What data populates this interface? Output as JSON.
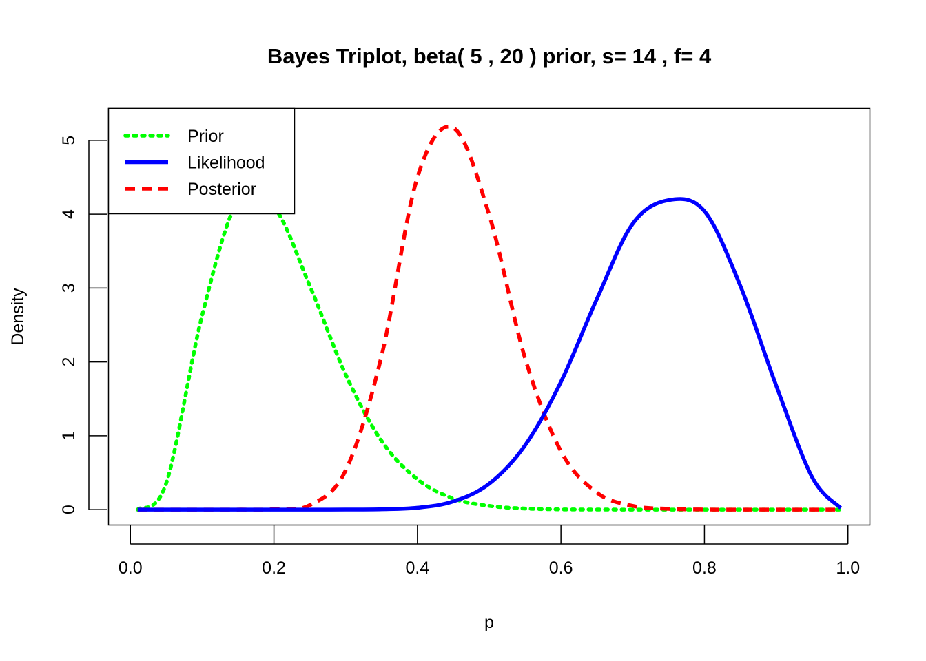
{
  "chart_data": {
    "type": "line",
    "title": "Bayes Triplot, beta( 5 , 20 ) prior, s= 14 , f= 4",
    "xlabel": "p",
    "ylabel": "Density",
    "xlim": [
      -0.0305,
      1.0305
    ],
    "ylim": [
      -0.209,
      5.432
    ],
    "xticks": [
      0,
      0.2,
      0.4,
      0.6,
      0.8,
      1
    ],
    "xtick_labels": [
      "0.0",
      "0.2",
      "0.4",
      "0.6",
      "0.8",
      "1.0"
    ],
    "yticks": [
      0,
      1,
      2,
      3,
      4,
      5
    ],
    "ytick_labels": [
      "0",
      "1",
      "2",
      "3",
      "4",
      "5"
    ],
    "grid": false,
    "legend": {
      "position": "top-left",
      "entries": [
        {
          "label": "Prior",
          "color": "#00ff00",
          "style": "dotted"
        },
        {
          "label": "Likelihood",
          "color": "#0000ff",
          "style": "solid"
        },
        {
          "label": "Posterior",
          "color": "#ff0000",
          "style": "dashed"
        }
      ]
    },
    "x": [
      0.01,
      0.05,
      0.1,
      0.15,
      0.2,
      0.25,
      0.3,
      0.35,
      0.4,
      0.45,
      0.5,
      0.55,
      0.6,
      0.65,
      0.7,
      0.75,
      0.8,
      0.85,
      0.9,
      0.95,
      0.99
    ],
    "series": [
      {
        "name": "Prior",
        "color": "#00ff00",
        "style": "dotted",
        "values": [
          0.0001,
          0.36,
          2.63,
          4.18,
          4.1,
          3.03,
          1.83,
          0.93,
          0.41,
          0.15,
          0.05,
          0.014,
          0.003,
          0.0006,
          0.0001,
          0,
          0,
          0,
          0,
          0,
          0
        ]
      },
      {
        "name": "Likelihood",
        "color": "#0000ff",
        "style": "solid",
        "values": [
          0,
          0,
          0,
          0,
          0,
          0,
          0.0004,
          0.004,
          0.025,
          0.11,
          0.35,
          0.87,
          1.73,
          2.85,
          3.87,
          4.19,
          4.04,
          3.03,
          1.68,
          0.44,
          0.02
        ]
      },
      {
        "name": "Posterior",
        "color": "#ff0000",
        "style": "dashed",
        "values": [
          0,
          0,
          0,
          0.0002,
          0.005,
          0.06,
          0.53,
          2.08,
          4.5,
          5.17,
          3.99,
          2.05,
          0.79,
          0.23,
          0.05,
          0.01,
          0.001,
          0,
          0,
          0,
          0
        ]
      }
    ]
  }
}
